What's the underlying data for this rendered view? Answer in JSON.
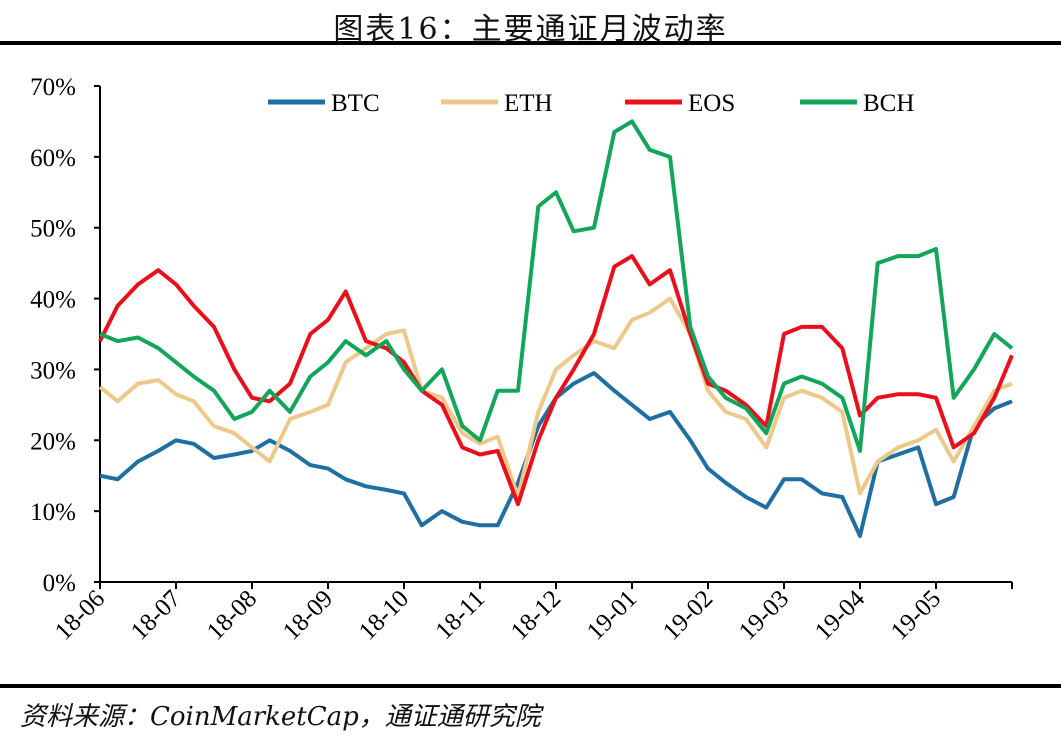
{
  "title": "图表16：主要通证月波动率",
  "source": "资料来源：CoinMarketCap，通证通研究院",
  "chart_data": {
    "type": "line",
    "title": "图表16：主要通证月波动率",
    "xlabel": "",
    "ylabel": "",
    "ylim": [
      0,
      70
    ],
    "y_ticks": [
      "0%",
      "10%",
      "20%",
      "30%",
      "40%",
      "50%",
      "60%",
      "70%"
    ],
    "x_ticks": [
      "18-06",
      "18-07",
      "18-08",
      "18-09",
      "18-10",
      "18-11",
      "18-12",
      "19-01",
      "19-02",
      "19-03",
      "19-04",
      "19-05"
    ],
    "x_tick_dates": [
      "2018-06-01",
      "2018-07-01",
      "2018-08-01",
      "2018-09-01",
      "2018-10-01",
      "2018-11-01",
      "2018-12-01",
      "2019-01-01",
      "2019-02-01",
      "2019-03-01",
      "2019-04-01",
      "2019-05-01"
    ],
    "grid": false,
    "legend": "top",
    "x": [
      "2018-06-01",
      "2018-06-08",
      "2018-06-16",
      "2018-06-24",
      "2018-07-01",
      "2018-07-08",
      "2018-07-16",
      "2018-07-24",
      "2018-08-01",
      "2018-08-08",
      "2018-08-16",
      "2018-08-24",
      "2018-09-01",
      "2018-09-08",
      "2018-09-16",
      "2018-09-24",
      "2018-10-01",
      "2018-10-08",
      "2018-10-16",
      "2018-10-24",
      "2018-11-01",
      "2018-11-08",
      "2018-11-16",
      "2018-11-24",
      "2018-12-01",
      "2018-12-08",
      "2018-12-16",
      "2018-12-24",
      "2019-01-01",
      "2019-01-08",
      "2019-01-16",
      "2019-01-24",
      "2019-02-01",
      "2019-02-08",
      "2019-02-16",
      "2019-02-24",
      "2019-03-01",
      "2019-03-08",
      "2019-03-16",
      "2019-03-24",
      "2019-04-01",
      "2019-04-08",
      "2019-04-16",
      "2019-04-24",
      "2019-05-01",
      "2019-05-08",
      "2019-05-16",
      "2019-05-24",
      "2019-06-01"
    ],
    "series": [
      {
        "name": "BTC",
        "color": "#1f6fa3",
        "values": [
          15,
          14.5,
          17,
          18.5,
          20,
          19.5,
          17.5,
          18,
          18.5,
          20,
          18.5,
          16.5,
          16,
          14.5,
          13.5,
          13,
          12.5,
          8,
          10,
          8.5,
          8,
          8,
          14,
          22,
          26,
          28,
          29.5,
          27,
          25,
          23,
          24,
          20,
          16,
          14,
          12,
          10.5,
          14.5,
          14.5,
          12.5,
          12,
          6.5,
          17,
          18,
          19,
          11,
          12,
          22,
          24.5,
          25.5
        ]
      },
      {
        "name": "ETH",
        "color": "#ecc98a",
        "values": [
          27.5,
          25.5,
          28,
          28.5,
          26.5,
          25.5,
          22,
          21,
          19,
          17,
          23,
          24,
          25,
          31,
          33,
          35,
          35.5,
          27,
          26,
          21,
          19.5,
          20.5,
          12,
          24,
          30,
          32,
          34,
          33,
          37,
          38,
          40,
          35,
          27,
          24,
          23,
          19,
          26,
          27,
          26,
          24,
          12.5,
          17,
          19,
          20,
          21.5,
          17,
          22,
          27,
          28
        ]
      },
      {
        "name": "EOS",
        "color": "#e8101a",
        "values": [
          34,
          39,
          42,
          44,
          42,
          39,
          36,
          30,
          26,
          25.5,
          28,
          35,
          37,
          41,
          34,
          33,
          31,
          27,
          25,
          19,
          18,
          18.5,
          11,
          20,
          26,
          30,
          35,
          44.5,
          46,
          42,
          44,
          35,
          28,
          27,
          25,
          22,
          35,
          36,
          36,
          33,
          23.5,
          26,
          26.5,
          26.5,
          26,
          19,
          21,
          26,
          32
        ]
      },
      {
        "name": "BCH",
        "color": "#13a55a",
        "values": [
          35,
          34,
          34.5,
          33,
          31,
          29,
          27,
          23,
          24,
          27,
          24,
          29,
          31,
          34,
          32,
          34,
          30,
          27,
          30,
          22,
          20,
          27,
          27,
          53,
          55,
          49.5,
          50,
          63.5,
          65,
          61,
          60,
          36,
          29,
          26,
          24.5,
          21,
          28,
          29,
          28,
          26,
          18.5,
          45,
          46,
          46,
          47,
          26,
          30,
          35,
          33
        ]
      }
    ]
  }
}
